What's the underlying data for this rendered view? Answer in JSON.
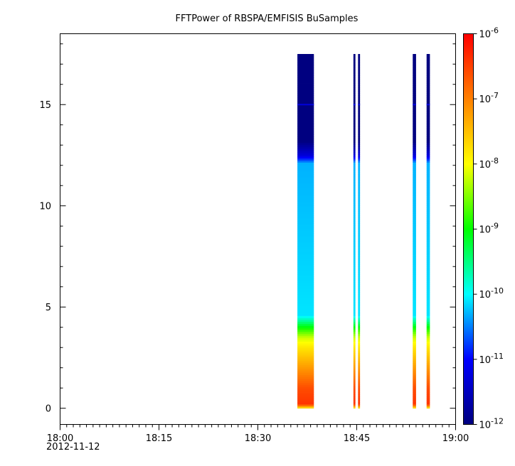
{
  "chart_data": {
    "type": "heatmap",
    "title": "FFTPower of RBSPA/EMFISIS  BuSamples",
    "xlabel": "",
    "ylabel": "",
    "x_ticks": [
      "18:00",
      "18:15",
      "18:30",
      "18:45",
      "19:00"
    ],
    "x_date_label": "2012-11-12",
    "xlim": [
      "18:00",
      "19:00"
    ],
    "y_ticks": [
      "0",
      "5",
      "10",
      "15"
    ],
    "ylim": [
      -0.8,
      18.5
    ],
    "colorbar": {
      "scale": "log",
      "range": [
        1e-12,
        1e-06
      ],
      "tick_base": "10",
      "tick_exponents": [
        "-12",
        "-11",
        "-10",
        "-9",
        "-8",
        "-7",
        "-6"
      ],
      "colors": [
        "#000080",
        "#0000ff",
        "#00ffff",
        "#00ff00",
        "#ffff00",
        "#ff8000",
        "#ff0000"
      ]
    },
    "data_extent_y": [
      0,
      17.5
    ],
    "segments": [
      {
        "start": "18:36",
        "end": "18:38.5"
      },
      {
        "start": "18:44.5",
        "end": "18:44.8"
      },
      {
        "start": "18:45.2",
        "end": "18:45.5"
      },
      {
        "start": "18:53.5",
        "end": "18:54"
      },
      {
        "start": "18:55.6",
        "end": "18:56.1"
      }
    ],
    "spectrum_log10": [
      {
        "y": 0.0,
        "v": -8.0
      },
      {
        "y": 0.2,
        "v": -6.4
      },
      {
        "y": 1.0,
        "v": -6.6
      },
      {
        "y": 2.0,
        "v": -7.2
      },
      {
        "y": 3.0,
        "v": -7.8
      },
      {
        "y": 3.5,
        "v": -8.2
      },
      {
        "y": 4.0,
        "v": -9.0
      },
      {
        "y": 4.6,
        "v": -10.1
      },
      {
        "y": 12.1,
        "v": -10.3
      },
      {
        "y": 12.5,
        "v": -11.3
      },
      {
        "y": 13.2,
        "v": -12.0
      },
      {
        "y": 17.5,
        "v": -12.0
      }
    ],
    "line_y": 15.0,
    "line_v": -11.3
  }
}
